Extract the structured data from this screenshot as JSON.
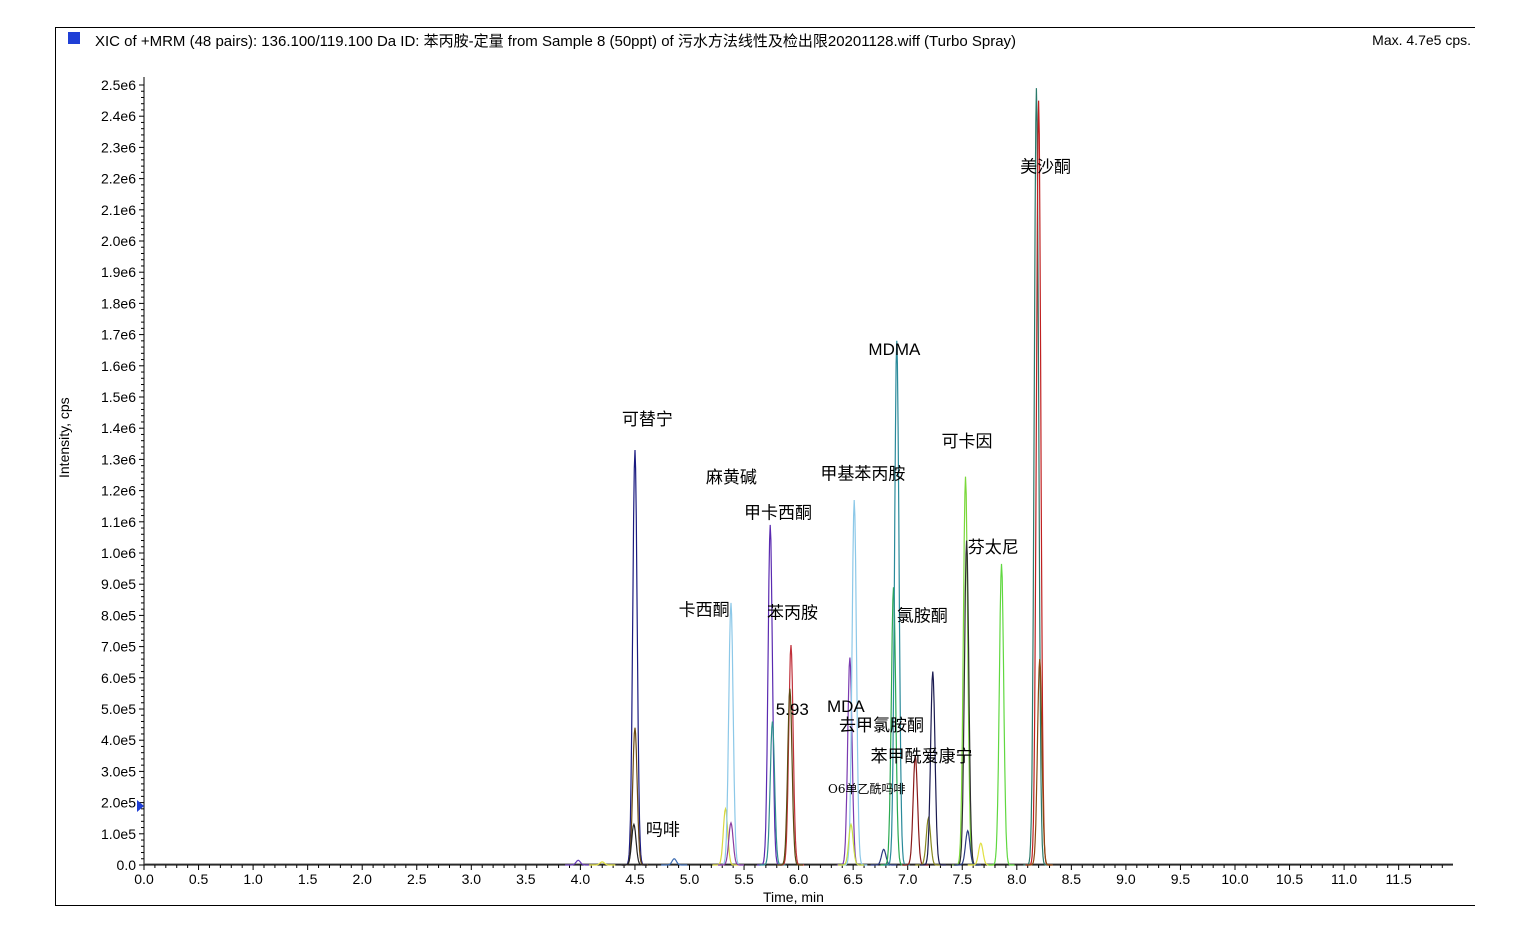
{
  "title": "XIC of +MRM (48 pairs): 136.100/119.100 Da ID: 苯丙胺-定量 from Sample 8 (50ppt) of 污水方法线性及检出限20201128.wiff (Turbo Spray)",
  "max_label": "Max. 4.7e5 cps.",
  "chart_data": {
    "type": "line",
    "xlabel": "Time, min",
    "ylabel": "Intensity, cps",
    "xlim": [
      0.0,
      12.0
    ],
    "ylim": [
      0,
      2500000
    ],
    "x_ticks": [
      "0.0",
      "0.5",
      "1.0",
      "1.5",
      "2.0",
      "2.5",
      "3.0",
      "3.5",
      "4.0",
      "4.5",
      "5.0",
      "5.5",
      "6.0",
      "6.5",
      "7.0",
      "7.5",
      "8.0",
      "8.5",
      "9.0",
      "9.5",
      "10.0",
      "10.5",
      "11.0",
      "11.5"
    ],
    "y_ticks": [
      "0.0",
      "1.0e5",
      "2.0e5",
      "3.0e5",
      "4.0e5",
      "5.0e5",
      "6.0e5",
      "7.0e5",
      "8.0e5",
      "9.0e5",
      "1.0e6",
      "1.1e6",
      "1.2e6",
      "1.3e6",
      "1.4e6",
      "1.5e6",
      "1.6e6",
      "1.7e6",
      "1.8e6",
      "1.9e6",
      "2.0e6",
      "2.1e6",
      "2.2e6",
      "2.3e6",
      "2.4e6",
      "2.5e6"
    ],
    "grid": false,
    "peaks": [
      {
        "rt": 3.98,
        "height": 15000,
        "color": "#6a3db8"
      },
      {
        "rt": 4.2,
        "height": 10000,
        "color": "#e0e040"
      },
      {
        "rt": 4.5,
        "height": 1330000,
        "color": "#1a1a80"
      },
      {
        "rt": 4.5,
        "height": 440000,
        "color": "#6b4a12"
      },
      {
        "rt": 4.49,
        "height": 130000,
        "color": "#222222"
      },
      {
        "rt": 4.86,
        "height": 20000,
        "color": "#3a6ab0"
      },
      {
        "rt": 5.33,
        "height": 180000,
        "color": "#d8d840"
      },
      {
        "rt": 5.38,
        "height": 840000,
        "color": "#8cc8e8"
      },
      {
        "rt": 5.38,
        "height": 135000,
        "color": "#8a3aa0"
      },
      {
        "rt": 5.74,
        "height": 1090000,
        "color": "#5a2ab0"
      },
      {
        "rt": 5.76,
        "height": 460000,
        "color": "#2f8f8f"
      },
      {
        "rt": 5.93,
        "height": 705000,
        "color": "#c0303a"
      },
      {
        "rt": 5.92,
        "height": 565000,
        "color": "#5a4a10"
      },
      {
        "rt": 6.47,
        "height": 665000,
        "color": "#7a3ab0"
      },
      {
        "rt": 6.51,
        "height": 1170000,
        "color": "#8cc8e8"
      },
      {
        "rt": 6.48,
        "height": 130000,
        "color": "#c8e040"
      },
      {
        "rt": 6.78,
        "height": 50000,
        "color": "#2a3a80"
      },
      {
        "rt": 6.87,
        "height": 890000,
        "color": "#2aaa50"
      },
      {
        "rt": 6.9,
        "height": 1680000,
        "color": "#2a8a9a"
      },
      {
        "rt": 7.07,
        "height": 350000,
        "color": "#8a1a1a"
      },
      {
        "rt": 7.19,
        "height": 150000,
        "color": "#8a8a20"
      },
      {
        "rt": 7.23,
        "height": 620000,
        "color": "#1a1a50"
      },
      {
        "rt": 7.53,
        "height": 1245000,
        "color": "#7ad83a"
      },
      {
        "rt": 7.54,
        "height": 1040000,
        "color": "#303030"
      },
      {
        "rt": 7.55,
        "height": 110000,
        "color": "#2a3a80"
      },
      {
        "rt": 7.67,
        "height": 70000,
        "color": "#e0e040"
      },
      {
        "rt": 7.86,
        "height": 965000,
        "color": "#60d840"
      },
      {
        "rt": 8.18,
        "height": 2490000,
        "color": "#2a7a6a"
      },
      {
        "rt": 8.2,
        "height": 2450000,
        "color": "#c02020"
      },
      {
        "rt": 8.21,
        "height": 660000,
        "color": "#8a4a10"
      }
    ],
    "annotations": [
      {
        "text": "可替宁",
        "x": 4.38,
        "y": 1410000,
        "cjk": true
      },
      {
        "text": "吗啡",
        "x": 4.6,
        "y": 95000,
        "cjk": true
      },
      {
        "text": "卡西酮",
        "x": 4.9,
        "y": 800000,
        "cjk": true
      },
      {
        "text": "麻黄碱",
        "x": 5.15,
        "y": 1225000,
        "cjk": true
      },
      {
        "text": "甲卡西酮",
        "x": 5.5,
        "y": 1110000,
        "cjk": true
      },
      {
        "text": "苯丙胺",
        "x": 5.71,
        "y": 790000,
        "cjk": true
      },
      {
        "text": "5.93",
        "x": 5.79,
        "y": 480000,
        "cjk": false
      },
      {
        "text": "甲基苯丙胺",
        "x": 6.2,
        "y": 1235000,
        "cjk": true
      },
      {
        "text": "MDA",
        "x": 6.26,
        "y": 490000,
        "cjk": false
      },
      {
        "text": "去甲氯胺酮",
        "x": 6.37,
        "y": 430000,
        "cjk": true
      },
      {
        "text": "苯甲酰爱康宁",
        "x": 6.66,
        "y": 330000,
        "cjk": true
      },
      {
        "text": "O6单乙酰吗啡",
        "x": 6.27,
        "y": 230000,
        "cjk": true
      },
      {
        "text": "MDMA",
        "x": 6.64,
        "y": 1635000,
        "cjk": false
      },
      {
        "text": "氯胺酮",
        "x": 6.9,
        "y": 780000,
        "cjk": true
      },
      {
        "text": "可卡因",
        "x": 7.31,
        "y": 1340000,
        "cjk": true
      },
      {
        "text": "芬太尼",
        "x": 7.55,
        "y": 1000000,
        "cjk": true
      },
      {
        "text": "美沙酮",
        "x": 8.03,
        "y": 2220000,
        "cjk": true
      }
    ]
  }
}
